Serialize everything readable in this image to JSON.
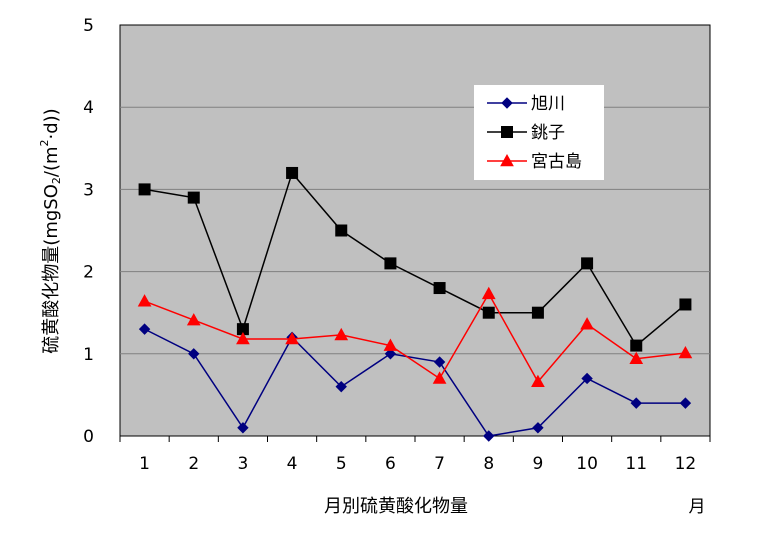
{
  "chart_data": {
    "type": "line",
    "title": "",
    "xlabel": "月別硫黄酸化物量",
    "x_unit": "月",
    "ylabel": "硫黄酸化物量(mgSO2/(m²·d))",
    "ylabel_parts": {
      "prefix": "硫黄酸化物量(mgSO",
      "sub": "2",
      "mid": "/(m",
      "sup": "2",
      "suffix": "·d))"
    },
    "categories": [
      "1",
      "2",
      "3",
      "4",
      "5",
      "6",
      "7",
      "8",
      "9",
      "10",
      "11",
      "12"
    ],
    "ylim": [
      0,
      5
    ],
    "yticks": [
      "0",
      "1",
      "2",
      "3",
      "4",
      "5"
    ],
    "grid": true,
    "plot_background": "#c0c0c0",
    "legend_position": "top-right",
    "series": [
      {
        "name": "旭川",
        "color": "#000080",
        "marker": "diamond",
        "values": [
          1.3,
          1.0,
          0.1,
          1.2,
          0.6,
          1.0,
          0.9,
          0.0,
          0.1,
          0.7,
          0.4,
          0.4
        ]
      },
      {
        "name": "銚子",
        "color": "#000000",
        "marker": "square",
        "values": [
          3.0,
          2.9,
          1.3,
          3.2,
          2.5,
          2.1,
          1.8,
          1.5,
          1.5,
          2.1,
          1.1,
          1.6
        ]
      },
      {
        "name": "宮古島",
        "color": "#ff0000",
        "marker": "triangle",
        "values": [
          1.64,
          1.41,
          1.18,
          1.18,
          1.23,
          1.1,
          0.7,
          1.73,
          0.66,
          1.36,
          0.94,
          1.01
        ]
      }
    ]
  }
}
